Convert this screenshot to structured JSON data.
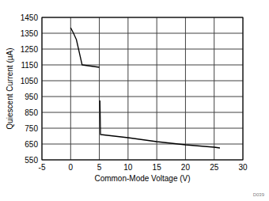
{
  "chart_data": {
    "type": "line",
    "x_label": "Common-Mode Voltage (V)",
    "y_label": "Quiescent Current (µA)",
    "annotations": [
      "D039"
    ],
    "x": [
      0,
      0.5,
      1,
      2,
      3,
      4,
      5,
      5.05,
      5.1,
      5.2,
      10,
      15,
      20,
      25,
      26
    ],
    "series": [
      {
        "name": "Quiescent Current",
        "color": "#000000",
        "values": [
          1385,
          1350,
          1310,
          1150,
          1145,
          1140,
          1135,
          null,
          925,
          710,
          690,
          665,
          645,
          630,
          625
        ]
      }
    ],
    "xlim": [
      -5,
      30
    ],
    "xticks": [
      -5,
      0,
      5,
      10,
      15,
      20,
      25,
      30
    ],
    "ylim": [
      550,
      1450
    ],
    "yticks": [
      550,
      650,
      750,
      850,
      950,
      1050,
      1150,
      1250,
      1350,
      1450
    ],
    "grid": true
  }
}
